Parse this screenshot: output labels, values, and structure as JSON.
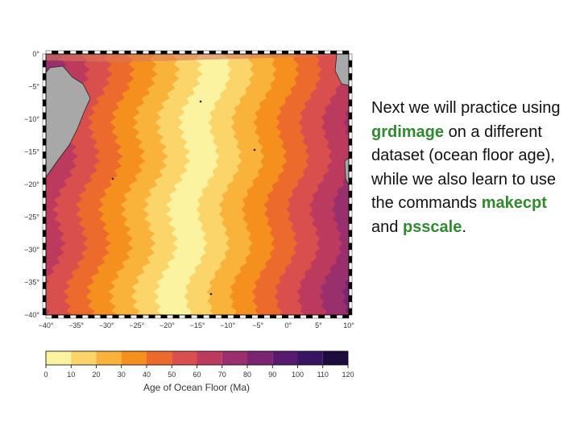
{
  "map": {
    "lat_ticks": [
      "0°",
      "−5°",
      "−10°",
      "−15°",
      "−20°",
      "−25°",
      "−30°",
      "−35°",
      "−40°"
    ],
    "lon_ticks": [
      "−40°",
      "−35°",
      "−30°",
      "−25°",
      "−20°",
      "−15°",
      "−10°",
      "−5°",
      "0°",
      "5°",
      "10°"
    ],
    "lon_range": [
      -40,
      10
    ],
    "lat_range": [
      -40,
      0
    ],
    "land_color": "#a8a8a8",
    "ridge_color": "#fcfcb0",
    "frame_style": "checkered"
  },
  "colorbar": {
    "tick_labels": [
      "0",
      "10",
      "20",
      "30",
      "40",
      "50",
      "60",
      "70",
      "80",
      "90",
      "100",
      "110",
      "120"
    ],
    "title": "Age of Ocean Floor (Ma)",
    "colors": [
      "#fcf3a0",
      "#fbd46a",
      "#f9b23a",
      "#f5901f",
      "#ec6a2c",
      "#d94f4e",
      "#bd3a5f",
      "#9a2f6d",
      "#7a2472",
      "#581a6e",
      "#381562",
      "#1c0d3e",
      "#070414"
    ]
  },
  "slide": {
    "text_1": "Next we will practice using ",
    "cmd_grdimage": "grdimage",
    "text_2": " on a different dataset (ocean floor age), while we also learn to use the commands ",
    "cmd_makecpt": "makecpt",
    "text_3": " and ",
    "cmd_psscale": "psscale",
    "text_4": "."
  }
}
